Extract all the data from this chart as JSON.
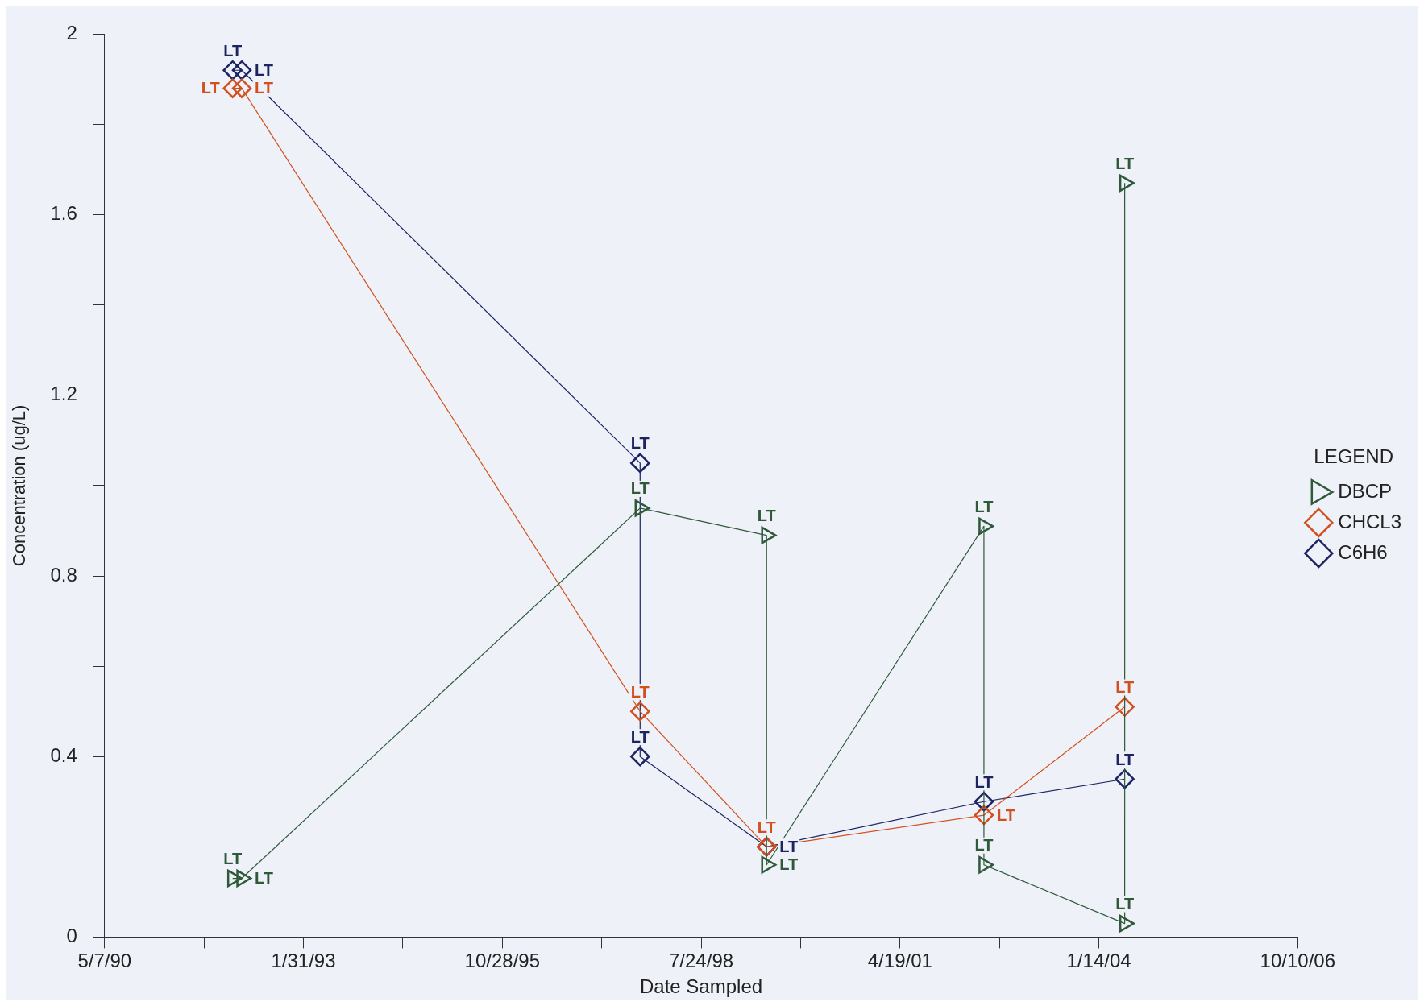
{
  "chart_data": {
    "type": "line",
    "xlabel": "Date Sampled",
    "ylabel": "Concentration (ug/L)",
    "legend_title": "LEGEND",
    "legend": "right",
    "grid": false,
    "xlim": [
      "1990-05-07",
      "2006-10-10"
    ],
    "xticks": [
      {
        "value": "1990-05-07",
        "label": "5/7/90"
      },
      {
        "value": "1991-09-19",
        "label": null
      },
      {
        "value": "1993-01-31",
        "label": "1/31/93"
      },
      {
        "value": "1994-06-15",
        "label": null
      },
      {
        "value": "1995-10-28",
        "label": "10/28/95"
      },
      {
        "value": "1997-03-11",
        "label": null
      },
      {
        "value": "1998-07-24",
        "label": "7/24/98"
      },
      {
        "value": "1999-12-06",
        "label": null
      },
      {
        "value": "2001-04-19",
        "label": "4/19/01"
      },
      {
        "value": "2002-09-01",
        "label": null
      },
      {
        "value": "2004-01-14",
        "label": "1/14/04"
      },
      {
        "value": "2005-05-28",
        "label": null
      },
      {
        "value": "2006-10-10",
        "label": "10/10/06"
      }
    ],
    "ylim": [
      0,
      2
    ],
    "yticks": [
      0,
      {
        "value": 0.2,
        "label": null
      },
      0.4,
      {
        "value": 0.6,
        "label": null
      },
      0.8,
      {
        "value": 1.0,
        "label": null
      },
      1.2,
      {
        "value": 1.4,
        "label": null
      },
      1.6,
      {
        "value": 1.8,
        "label": null
      },
      2
    ],
    "series": [
      {
        "name": "DBCP",
        "color": "#2f5a3a",
        "marker": "triangle",
        "x": [
          "1992-02-10",
          "1992-03-27",
          "1997-09-20",
          "1999-06-18",
          "1999-06-18",
          "2002-06-15",
          "2002-06-15",
          "2004-05-23",
          "2004-05-23"
        ],
        "values": [
          0.13,
          0.13,
          0.95,
          0.89,
          0.16,
          0.91,
          0.16,
          0.03,
          1.67
        ],
        "value_labels": [
          "LT",
          "LT",
          "LT",
          "LT",
          "LT",
          "LT",
          "LT",
          "LT",
          "LT"
        ]
      },
      {
        "name": "CHCL3",
        "color": "#d2501e",
        "marker": "diamond",
        "x": [
          "1992-02-10",
          "1992-03-27",
          "1997-09-20",
          "1999-06-18",
          "2002-06-15",
          "2004-05-23"
        ],
        "values": [
          1.88,
          1.88,
          0.5,
          0.2,
          0.27,
          0.51
        ],
        "value_labels": [
          "LT",
          "LT",
          "LT",
          "LT",
          "LT",
          "LT"
        ]
      },
      {
        "name": "C6H6",
        "color": "#1c2462",
        "marker": "diamond",
        "x": [
          "1992-02-10",
          "1992-03-27",
          "1997-09-20",
          "1997-09-20",
          "1999-06-18",
          "2002-06-15",
          "2004-05-23"
        ],
        "values": [
          1.92,
          1.92,
          1.05,
          0.4,
          0.2,
          0.3,
          0.35
        ],
        "value_labels": [
          "LT",
          "LT",
          "LT",
          "LT",
          "LT",
          "LT",
          "LT"
        ]
      }
    ]
  }
}
